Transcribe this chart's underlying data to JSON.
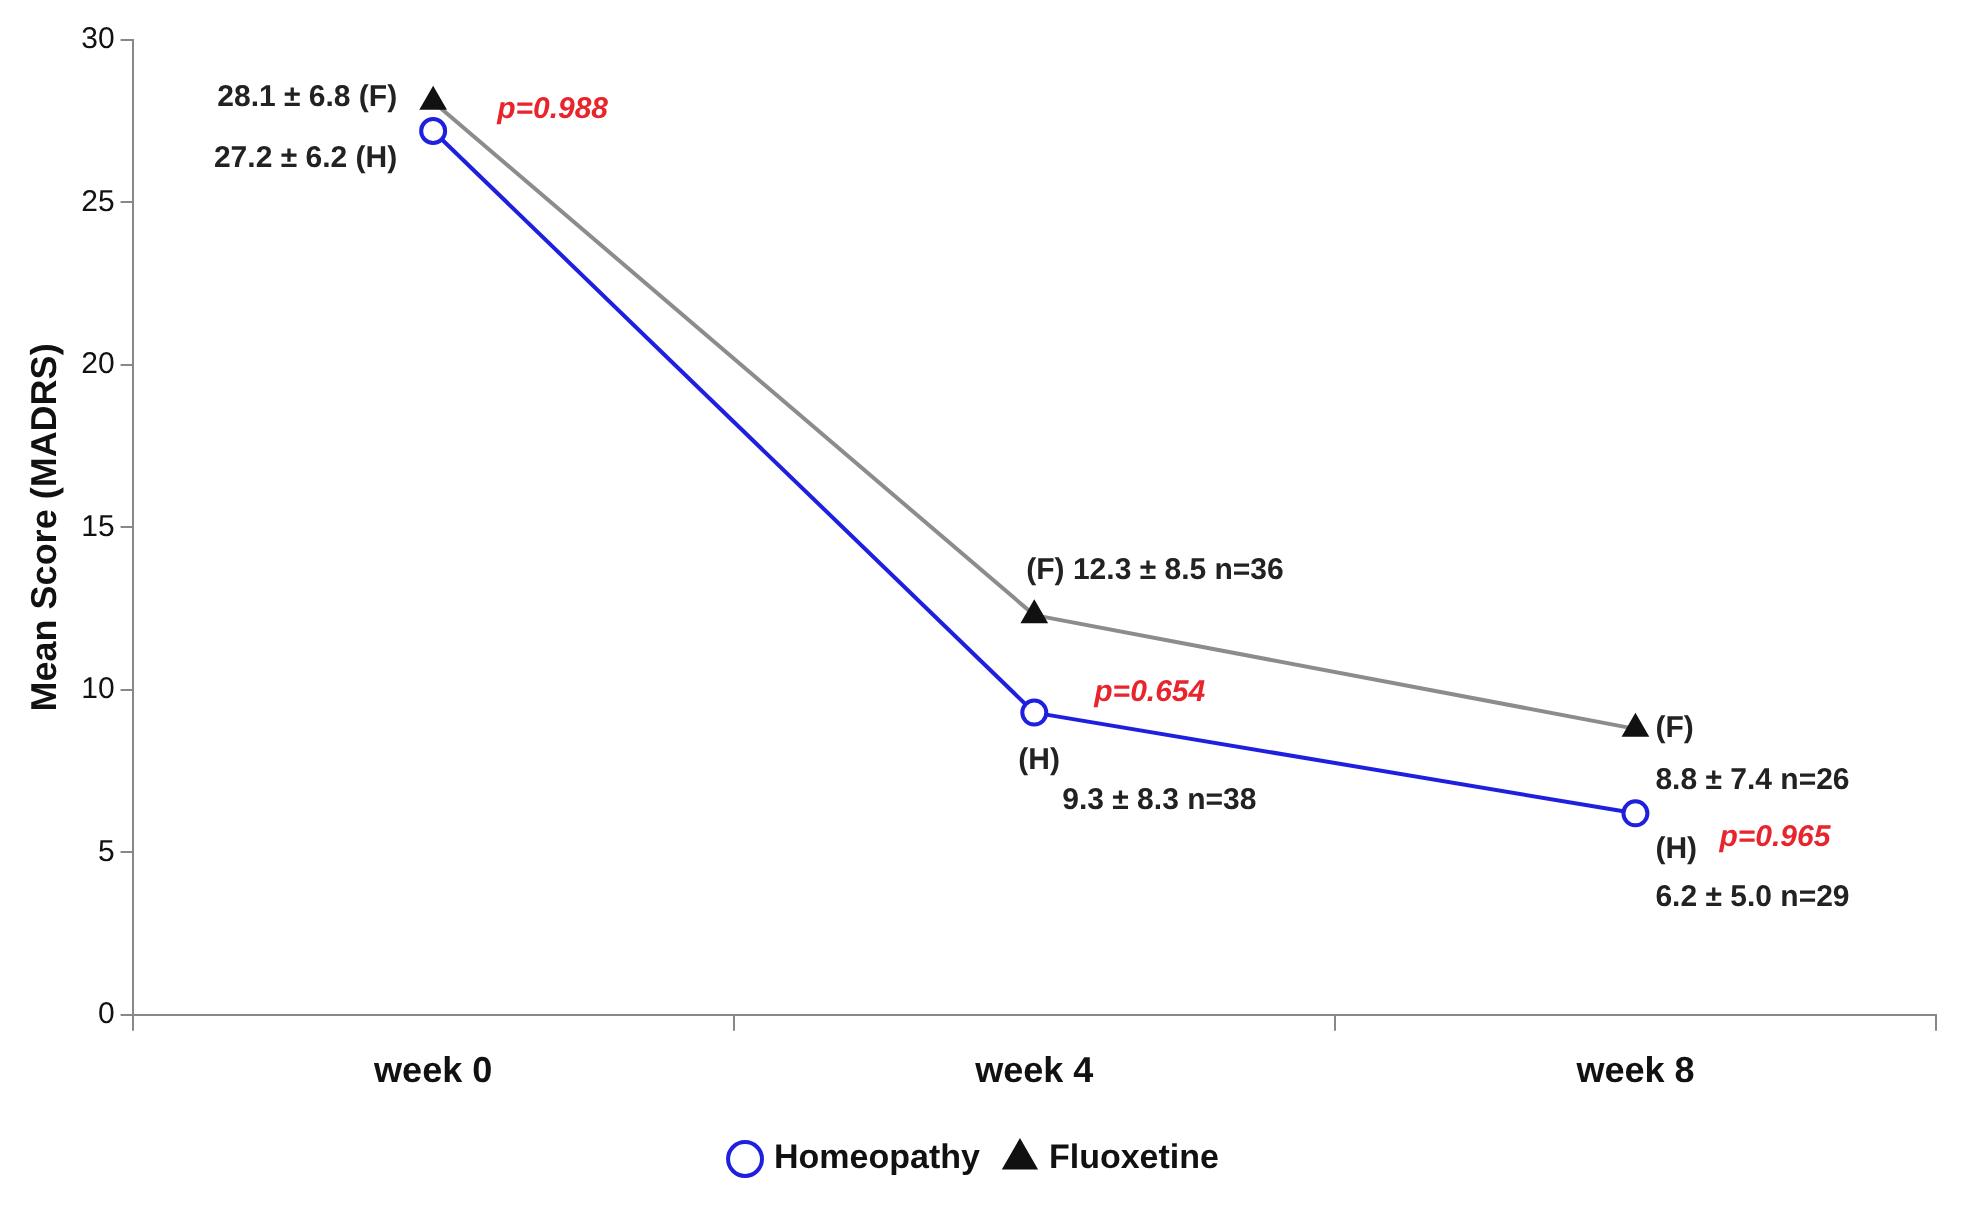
{
  "chart_data": {
    "type": "line",
    "ylabel": "Mean Score (MADRS)",
    "categories": [
      "week 0",
      "week 4",
      "week 8"
    ],
    "series": [
      {
        "name": "Homeopathy",
        "color": "#1f1fe0",
        "marker": "circle",
        "values": [
          27.2,
          9.3,
          6.2
        ]
      },
      {
        "name": "Fluoxetine",
        "color": "#8c8c8c",
        "marker": "triangle",
        "values": [
          28.1,
          12.3,
          8.8
        ]
      }
    ],
    "ylim": [
      0,
      30
    ],
    "yticks": [
      0,
      5,
      10,
      15,
      20,
      25,
      30
    ],
    "grid": false,
    "legend": "bottom",
    "annotations": [
      {
        "text": "28.1 ± 6.8 (F)",
        "x": "week 0",
        "y": 28.1
      },
      {
        "text": "27.2 ± 6.2 (H)",
        "x": "week 0",
        "y": 27.2
      },
      {
        "text": "p=0.988",
        "x": "week 0",
        "y": 28.1
      },
      {
        "text": "(F) 12.3 ± 8.5 n=36",
        "x": "week 4",
        "y": 12.3
      },
      {
        "text": "p=0.654",
        "x": "week 4",
        "y": 9.3
      },
      {
        "text": "(H)",
        "x": "week 4",
        "y": 9.3
      },
      {
        "text": "9.3 ± 8.3 n=38",
        "x": "week 4",
        "y": 9.3
      },
      {
        "text": "(F)",
        "x": "week 8",
        "y": 8.8
      },
      {
        "text": "8.8 ± 7.4 n=26",
        "x": "week 8",
        "y": 8.8
      },
      {
        "text": "(H)",
        "x": "week 8",
        "y": 6.2
      },
      {
        "text": "p=0.965",
        "x": "week 8",
        "y": 6.2
      },
      {
        "text": "6.2 ± 5.0 n=29",
        "x": "week 8",
        "y": 6.2
      }
    ]
  }
}
